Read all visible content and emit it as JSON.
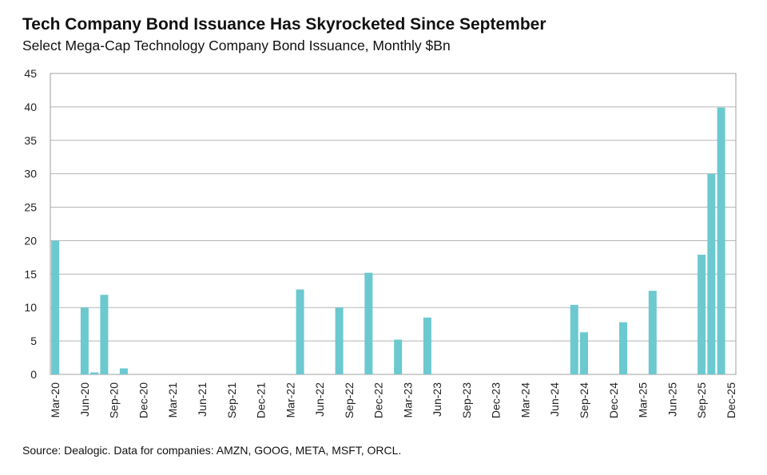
{
  "chart_data": {
    "type": "bar",
    "title": "Tech Company Bond Issuance Has Skyrocketed Since September",
    "subtitle": "Select Mega-Cap Technology Company Bond Issuance, Monthly $Bn",
    "source": "Source: Dealogic. Data for companies: AMZN, GOOG, META, MSFT, ORCL.",
    "xlabel": "",
    "ylabel": "",
    "ylim": [
      0,
      45
    ],
    "yticks": [
      0,
      5,
      10,
      15,
      20,
      25,
      30,
      35,
      40,
      45
    ],
    "x_range": [
      "Mar-20",
      "Dec-25"
    ],
    "xtick_labels": [
      "Mar-20",
      "Jun-20",
      "Sep-20",
      "Dec-20",
      "Mar-21",
      "Jun-21",
      "Sep-21",
      "Dec-21",
      "Mar-22",
      "Jun-22",
      "Sep-22",
      "Dec-22",
      "Mar-23",
      "Jun-23",
      "Sep-23",
      "Dec-23",
      "Mar-24",
      "Jun-24",
      "Sep-24",
      "Dec-24",
      "Mar-25",
      "Jun-25",
      "Sep-25",
      "Dec-25"
    ],
    "grid": true,
    "bar_color": "#6cc9d0",
    "bars": [
      {
        "month": "Mar-20",
        "value": 20.0
      },
      {
        "month": "Jun-20",
        "value": 10.0
      },
      {
        "month": "Jul-20",
        "value": 0.3
      },
      {
        "month": "Aug-20",
        "value": 11.9
      },
      {
        "month": "Oct-20",
        "value": 0.9
      },
      {
        "month": "Apr-22",
        "value": 12.7
      },
      {
        "month": "Aug-22",
        "value": 10.0
      },
      {
        "month": "Nov-22",
        "value": 15.2
      },
      {
        "month": "Feb-23",
        "value": 5.2
      },
      {
        "month": "May-23",
        "value": 8.5
      },
      {
        "month": "Aug-24",
        "value": 10.4
      },
      {
        "month": "Sep-24",
        "value": 6.3
      },
      {
        "month": "Jan-25",
        "value": 7.8
      },
      {
        "month": "Apr-25",
        "value": 12.5
      },
      {
        "month": "Sep-25",
        "value": 17.9
      },
      {
        "month": "Oct-25",
        "value": 30.0
      },
      {
        "month": "Nov-25",
        "value": 39.9
      }
    ]
  }
}
